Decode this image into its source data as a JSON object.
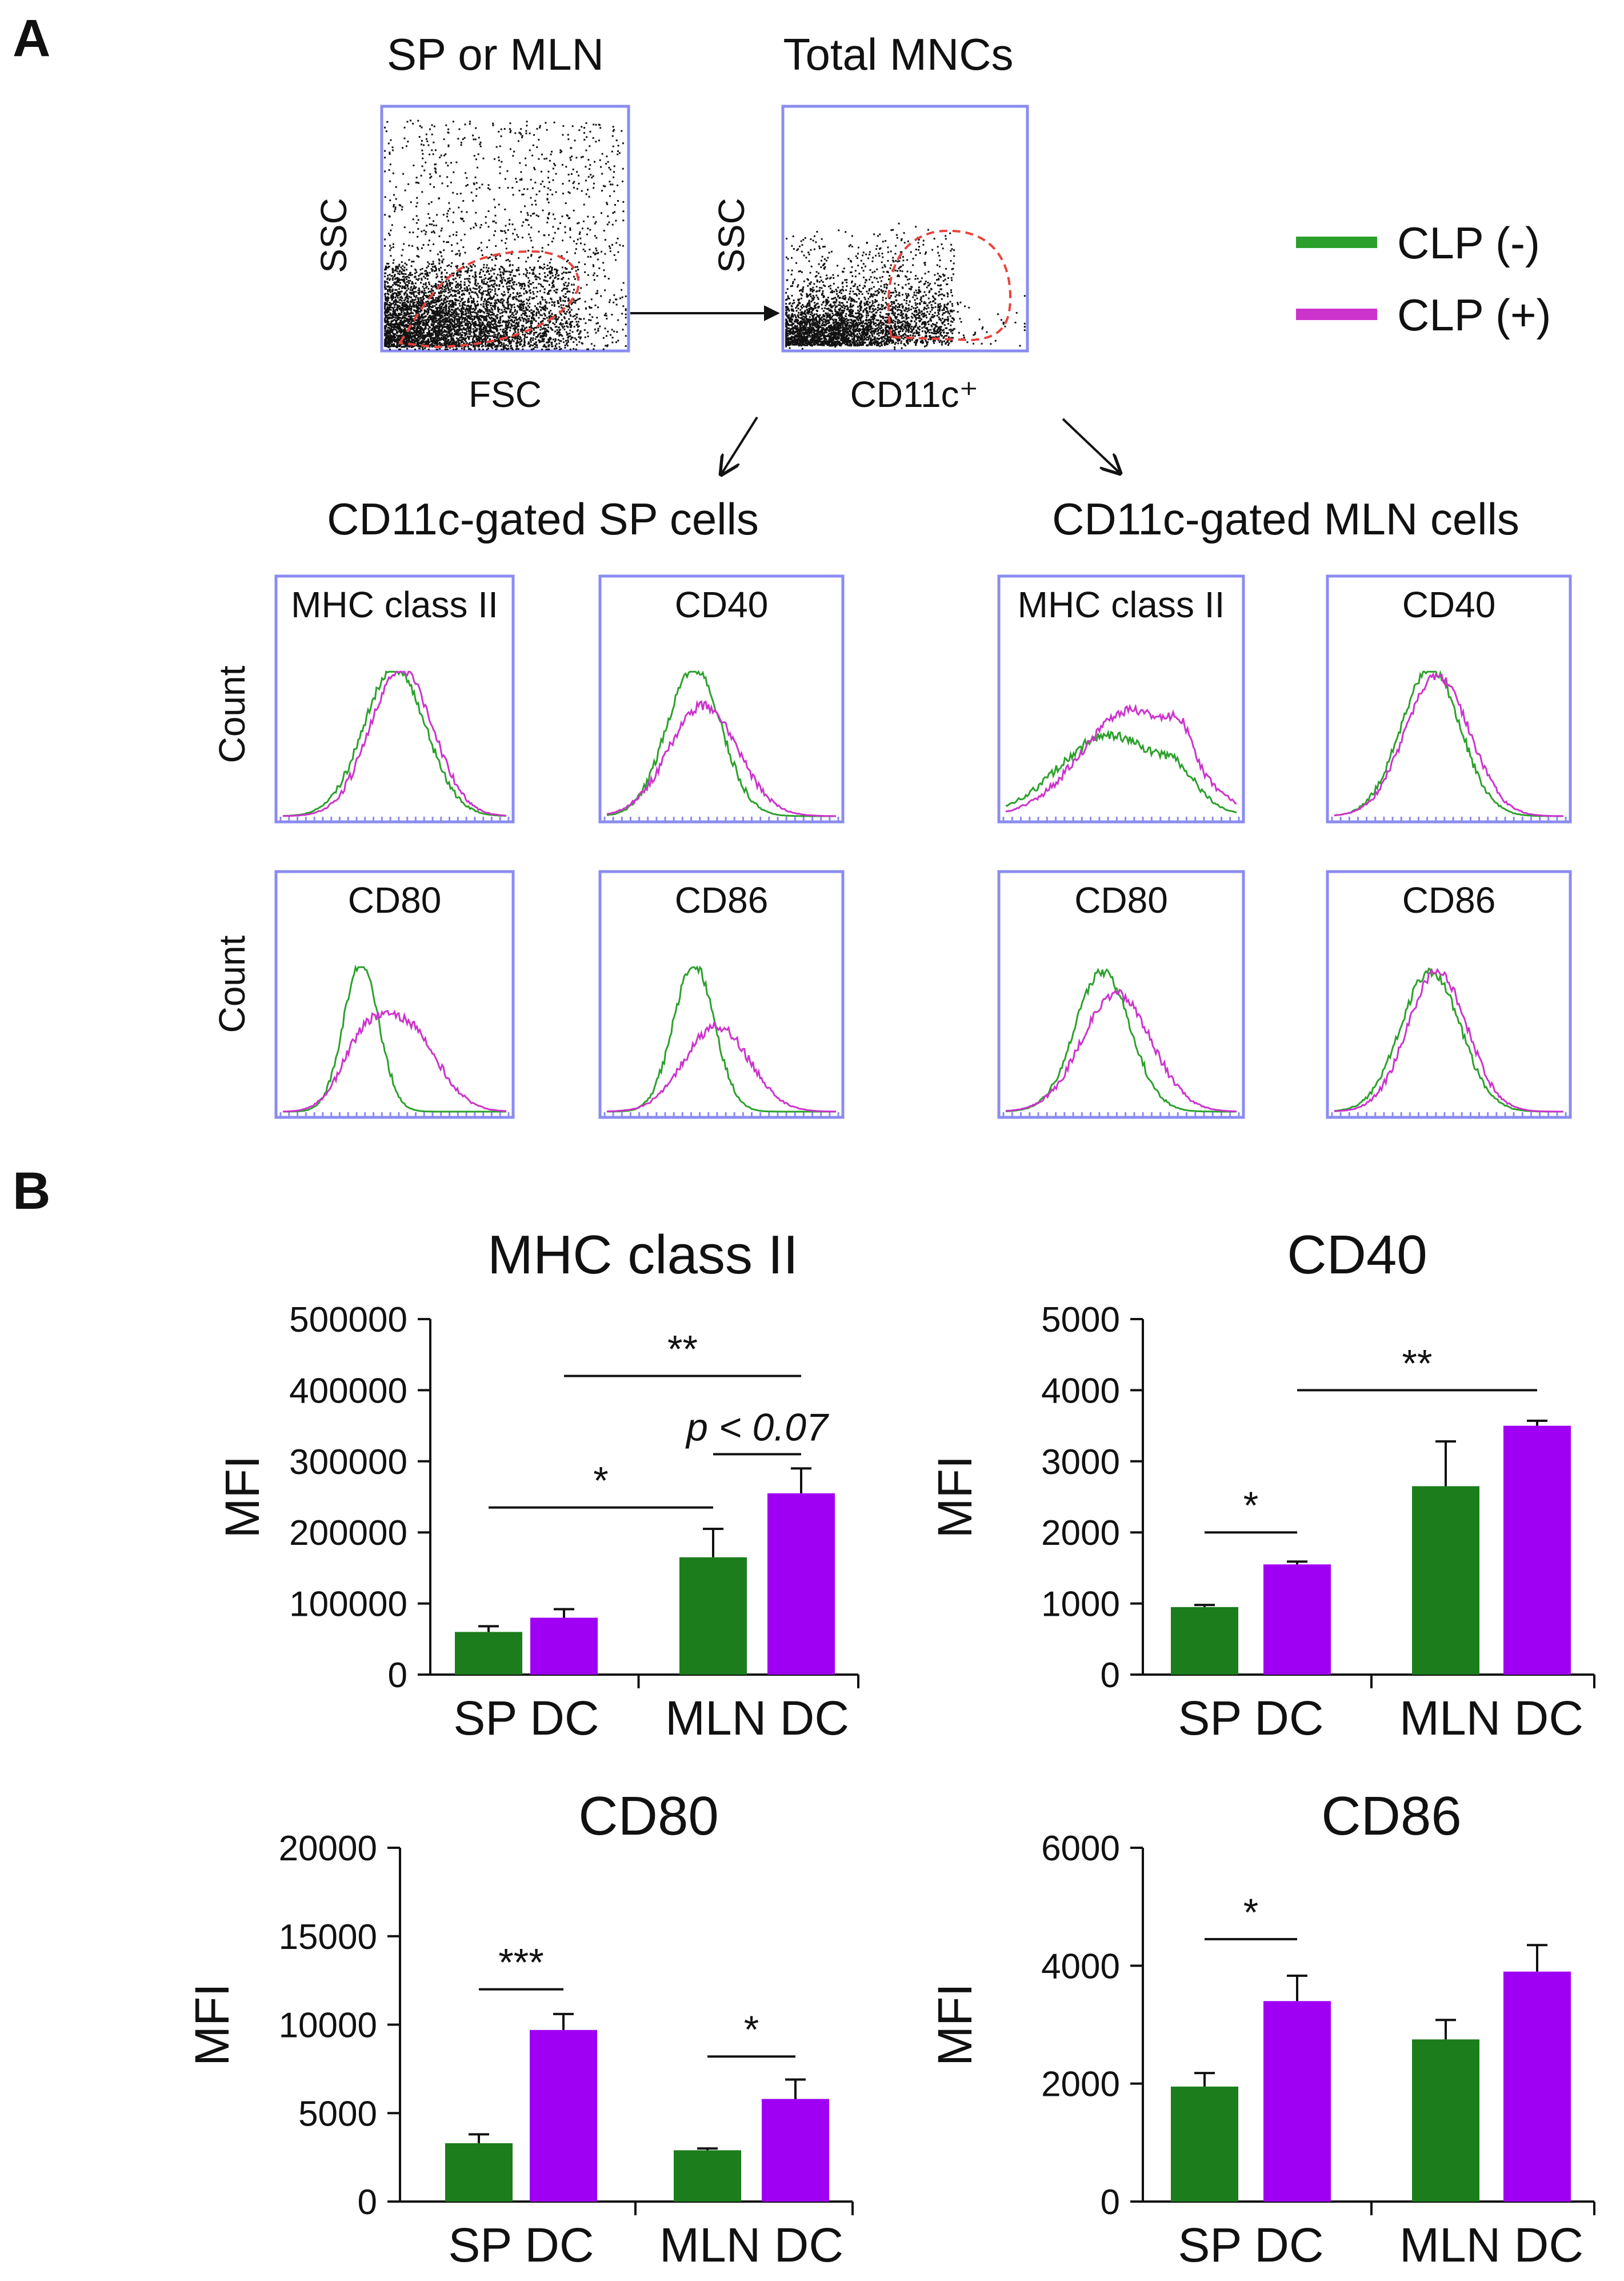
{
  "panel_a": {
    "label": "A",
    "scatter1": {
      "title": "SP or MLN",
      "xlabel": "FSC",
      "ylabel": "SSC"
    },
    "scatter2": {
      "title": "Total MNCs",
      "xlabel": "CD11c⁺",
      "ylabel": "SSC"
    },
    "legend": [
      {
        "label": "CLP (-)",
        "color": "#2ca02c"
      },
      {
        "label": "CLP (+)",
        "color": "#cc33cc"
      }
    ],
    "group_sp": "CD11c-gated SP cells",
    "group_mln": "CD11c-gated MLN cells",
    "count_label": "Count",
    "histograms": [
      {
        "marker": "MHC class II",
        "group": "SP"
      },
      {
        "marker": "CD40",
        "group": "SP"
      },
      {
        "marker": "MHC class II",
        "group": "MLN"
      },
      {
        "marker": "CD40",
        "group": "MLN"
      },
      {
        "marker": "CD80",
        "group": "SP"
      },
      {
        "marker": "CD86",
        "group": "SP"
      },
      {
        "marker": "CD80",
        "group": "MLN"
      },
      {
        "marker": "CD86",
        "group": "MLN"
      }
    ]
  },
  "panel_b": {
    "label": "B"
  },
  "colors": {
    "clp_neg": "#1b7d1b",
    "clp_pos": "#9f00f3",
    "gate": "#e8423c",
    "frame": "#8a8cf0"
  },
  "chart_data": [
    {
      "type": "bar",
      "title": "MHC class II",
      "ylabel": "MFI",
      "ylim": [
        0,
        500000
      ],
      "yticks": [
        "0",
        "100000",
        "200000",
        "300000",
        "400000",
        "500000"
      ],
      "categories": [
        "SP DC",
        "MLN DC"
      ],
      "series": [
        {
          "name": "CLP (-)",
          "values": [
            60000,
            165000
          ],
          "errors": [
            8000,
            40000
          ]
        },
        {
          "name": "CLP (+)",
          "values": [
            80000,
            255000
          ],
          "errors": [
            12000,
            35000
          ]
        }
      ],
      "annotations": [
        {
          "text": "*",
          "from": [
            0,
            0
          ],
          "to": [
            1,
            0
          ],
          "y": 235000
        },
        {
          "text": "**",
          "from": [
            0,
            1
          ],
          "to": [
            1,
            1
          ],
          "y": 420000
        },
        {
          "text": "p < 0.07",
          "from": [
            1,
            0
          ],
          "to": [
            1,
            1
          ],
          "y": 310000,
          "italic": true
        }
      ]
    },
    {
      "type": "bar",
      "title": "CD40",
      "ylabel": "MFI",
      "ylim": [
        0,
        5000
      ],
      "yticks": [
        "0",
        "1000",
        "2000",
        "3000",
        "4000",
        "5000"
      ],
      "categories": [
        "SP DC",
        "MLN DC"
      ],
      "series": [
        {
          "name": "CLP (-)",
          "values": [
            950,
            2650
          ],
          "errors": [
            30,
            630
          ]
        },
        {
          "name": "CLP (+)",
          "values": [
            1550,
            3500
          ],
          "errors": [
            40,
            70
          ]
        }
      ],
      "annotations": [
        {
          "text": "*",
          "from": [
            0,
            0
          ],
          "to": [
            0,
            1
          ],
          "y": 2000
        },
        {
          "text": "**",
          "from": [
            0,
            1
          ],
          "to": [
            1,
            1
          ],
          "y": 4000
        }
      ]
    },
    {
      "type": "bar",
      "title": "CD80",
      "ylabel": "MFI",
      "ylim": [
        0,
        20000
      ],
      "yticks": [
        "0",
        "5000",
        "10000",
        "15000",
        "20000"
      ],
      "categories": [
        "SP DC",
        "MLN DC"
      ],
      "series": [
        {
          "name": "CLP (-)",
          "values": [
            3300,
            2900
          ],
          "errors": [
            500,
            100
          ]
        },
        {
          "name": "CLP (+)",
          "values": [
            9700,
            5800
          ],
          "errors": [
            900,
            1100
          ]
        }
      ],
      "annotations": [
        {
          "text": "***",
          "from": [
            0,
            0
          ],
          "to": [
            0,
            1
          ],
          "y": 12000
        },
        {
          "text": "*",
          "from": [
            1,
            0
          ],
          "to": [
            1,
            1
          ],
          "y": 8200
        }
      ]
    },
    {
      "type": "bar",
      "title": "CD86",
      "ylabel": "MFI",
      "ylim": [
        0,
        6000
      ],
      "yticks": [
        "0",
        "2000",
        "4000",
        "6000"
      ],
      "categories": [
        "SP DC",
        "MLN DC"
      ],
      "series": [
        {
          "name": "CLP (-)",
          "values": [
            1950,
            2750
          ],
          "errors": [
            230,
            330
          ]
        },
        {
          "name": "CLP (+)",
          "values": [
            3400,
            3900
          ],
          "errors": [
            430,
            450
          ]
        }
      ],
      "annotations": [
        {
          "text": "*",
          "from": [
            0,
            0
          ],
          "to": [
            0,
            1
          ],
          "y": 4450
        }
      ]
    }
  ]
}
